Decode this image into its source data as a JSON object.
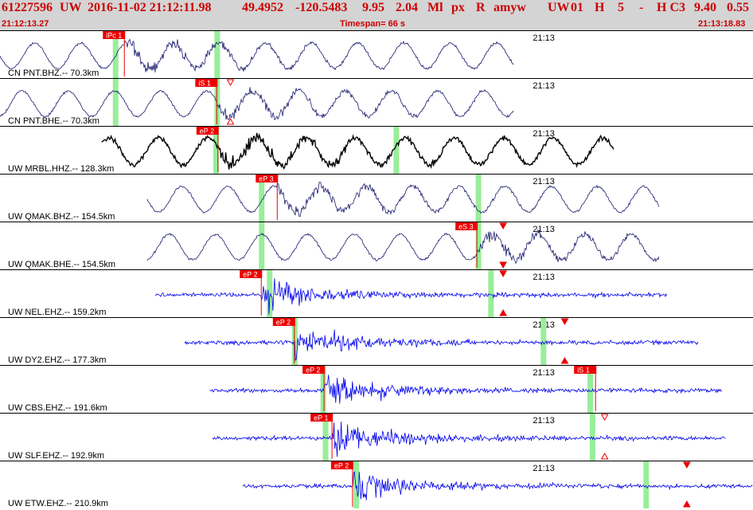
{
  "header": {
    "event_id": "61227596",
    "network": "UW",
    "datetime": "2016-11-02 21:12:11.98",
    "lat": "49.4952",
    "lon": "-120.5483",
    "depth": "9.95",
    "magnitude": "2.04",
    "mag_type": "Ml",
    "event_type_code": "px",
    "review_flag": "R",
    "analyst": "amyw",
    "source": "UW",
    "version": "01",
    "quality": "H",
    "num_value": "5",
    "dash": "-",
    "class_code": "H C3",
    "value_a": "9.40",
    "value_b": "0.55",
    "start_time": "21:12:13.27",
    "timespan_label": "Timespan=  66 s",
    "end_time": "21:13:18.83"
  },
  "colors": {
    "header_bg": "#d4d4d4",
    "header_text": "#cc0000",
    "trace_broadband": "#1a1a6e",
    "trace_black": "#000000",
    "trace_short_period": "#0000ee",
    "pick_box": "#ee0000",
    "pick_text": "#ffffff",
    "window_band": "#99ee99",
    "marker": "#ee0000"
  },
  "chart_data": {
    "type": "line",
    "description_type": "seismogram-record-section",
    "x_units": "seconds",
    "xlim": [
      0,
      66
    ],
    "minute_label": "21:13",
    "minute_mark_time_s": 46.7,
    "traces": [
      {
        "label": "CN PNT.BHZ.-- 70.3km",
        "style": "broadband",
        "start_s": 0,
        "end_s": 45,
        "pick": {
          "label": "iPc 1",
          "time_s": 10.9
        },
        "windows_s": [
          10.1,
          19.0
        ],
        "markers": []
      },
      {
        "label": "CN PNT.BHE.-- 70.3km",
        "style": "broadband",
        "start_s": 0,
        "end_s": 45,
        "pick": {
          "label": "iS 1",
          "time_s": 19.0
        },
        "windows_s": [
          10.1,
          19.0
        ],
        "markers": [
          {
            "time_s": 20.2,
            "kind": "open-down"
          },
          {
            "time_s": 20.2,
            "kind": "open-up"
          }
        ]
      },
      {
        "label": "UW MRBL.HHZ.-- 128.3km",
        "style": "black",
        "start_s": 8.9,
        "end_s": 53.8,
        "pick": {
          "label": "eP 2",
          "time_s": 19.1
        },
        "windows_s": [
          18.9,
          34.7
        ],
        "markers": []
      },
      {
        "label": "UW QMAK.BHZ.-- 154.5km",
        "style": "broadband",
        "start_s": 12.9,
        "end_s": 57.8,
        "pick": {
          "label": "eP 3",
          "time_s": 24.3
        },
        "windows_s": [
          22.9,
          41.9
        ],
        "markers": []
      },
      {
        "label": "UW QMAK.BHE.-- 154.5km",
        "style": "broadband",
        "start_s": 12.9,
        "end_s": 57.8,
        "pick": {
          "label": "eS 3",
          "time_s": 41.8
        },
        "windows_s": [
          22.9,
          41.9
        ],
        "markers": [
          {
            "time_s": 44.1,
            "kind": "filled-down"
          },
          {
            "time_s": 44.1,
            "kind": "filled-down-bottom"
          }
        ]
      },
      {
        "label": "UW NEL.EHZ.-- 159.2km",
        "style": "short-period",
        "start_s": 13.6,
        "end_s": 58.5,
        "pick": {
          "label": "eP 2",
          "time_s": 22.9
        },
        "windows_s": [
          23.6,
          43.0
        ],
        "markers": [
          {
            "time_s": 44.1,
            "kind": "filled-down"
          },
          {
            "time_s": 44.1,
            "kind": "filled-up"
          }
        ]
      },
      {
        "label": "UW DY2.EHZ.-- 177.3km",
        "style": "short-period",
        "start_s": 16.2,
        "end_s": 61.2,
        "pick": {
          "label": "eP 2",
          "time_s": 25.8
        },
        "windows_s": [
          25.8,
          47.6
        ],
        "markers": [
          {
            "time_s": 49.5,
            "kind": "filled-down"
          },
          {
            "time_s": 49.5,
            "kind": "filled-up"
          }
        ]
      },
      {
        "label": "UW CBS.EHZ.-- 191.6km",
        "style": "short-period",
        "start_s": 18.4,
        "end_s": 63.3,
        "pick": {
          "label": "eP 2",
          "time_s": 28.4
        },
        "windows_s": [
          28.3,
          51.7
        ],
        "markers": []
      },
      {
        "label": "UW CBS.EHZ.-- 191.6km (S)",
        "hidden_label": true,
        "style": "none",
        "start_s": 0,
        "end_s": 0,
        "pick": {
          "label": "iS 1",
          "time_s": 52.2
        },
        "windows_s": [],
        "markers": []
      },
      {
        "label": "UW SLF.EHZ.-- 192.9km",
        "style": "short-period",
        "start_s": 18.6,
        "end_s": 63.6,
        "pick": {
          "label": "eP 1",
          "time_s": 29.1
        },
        "windows_s": [
          28.5,
          51.9
        ],
        "markers": [
          {
            "time_s": 53.0,
            "kind": "open-down"
          },
          {
            "time_s": 53.0,
            "kind": "open-up"
          }
        ]
      },
      {
        "label": "UW ETW.EHZ.-- 210.9km",
        "style": "short-period",
        "start_s": 21.3,
        "end_s": 66,
        "pick": {
          "label": "eP 2",
          "time_s": 30.9
        },
        "windows_s": [
          31.2,
          56.6
        ],
        "markers": [
          {
            "time_s": 60.2,
            "kind": "filled-down"
          },
          {
            "time_s": 60.2,
            "kind": "filled-up"
          }
        ]
      }
    ]
  }
}
